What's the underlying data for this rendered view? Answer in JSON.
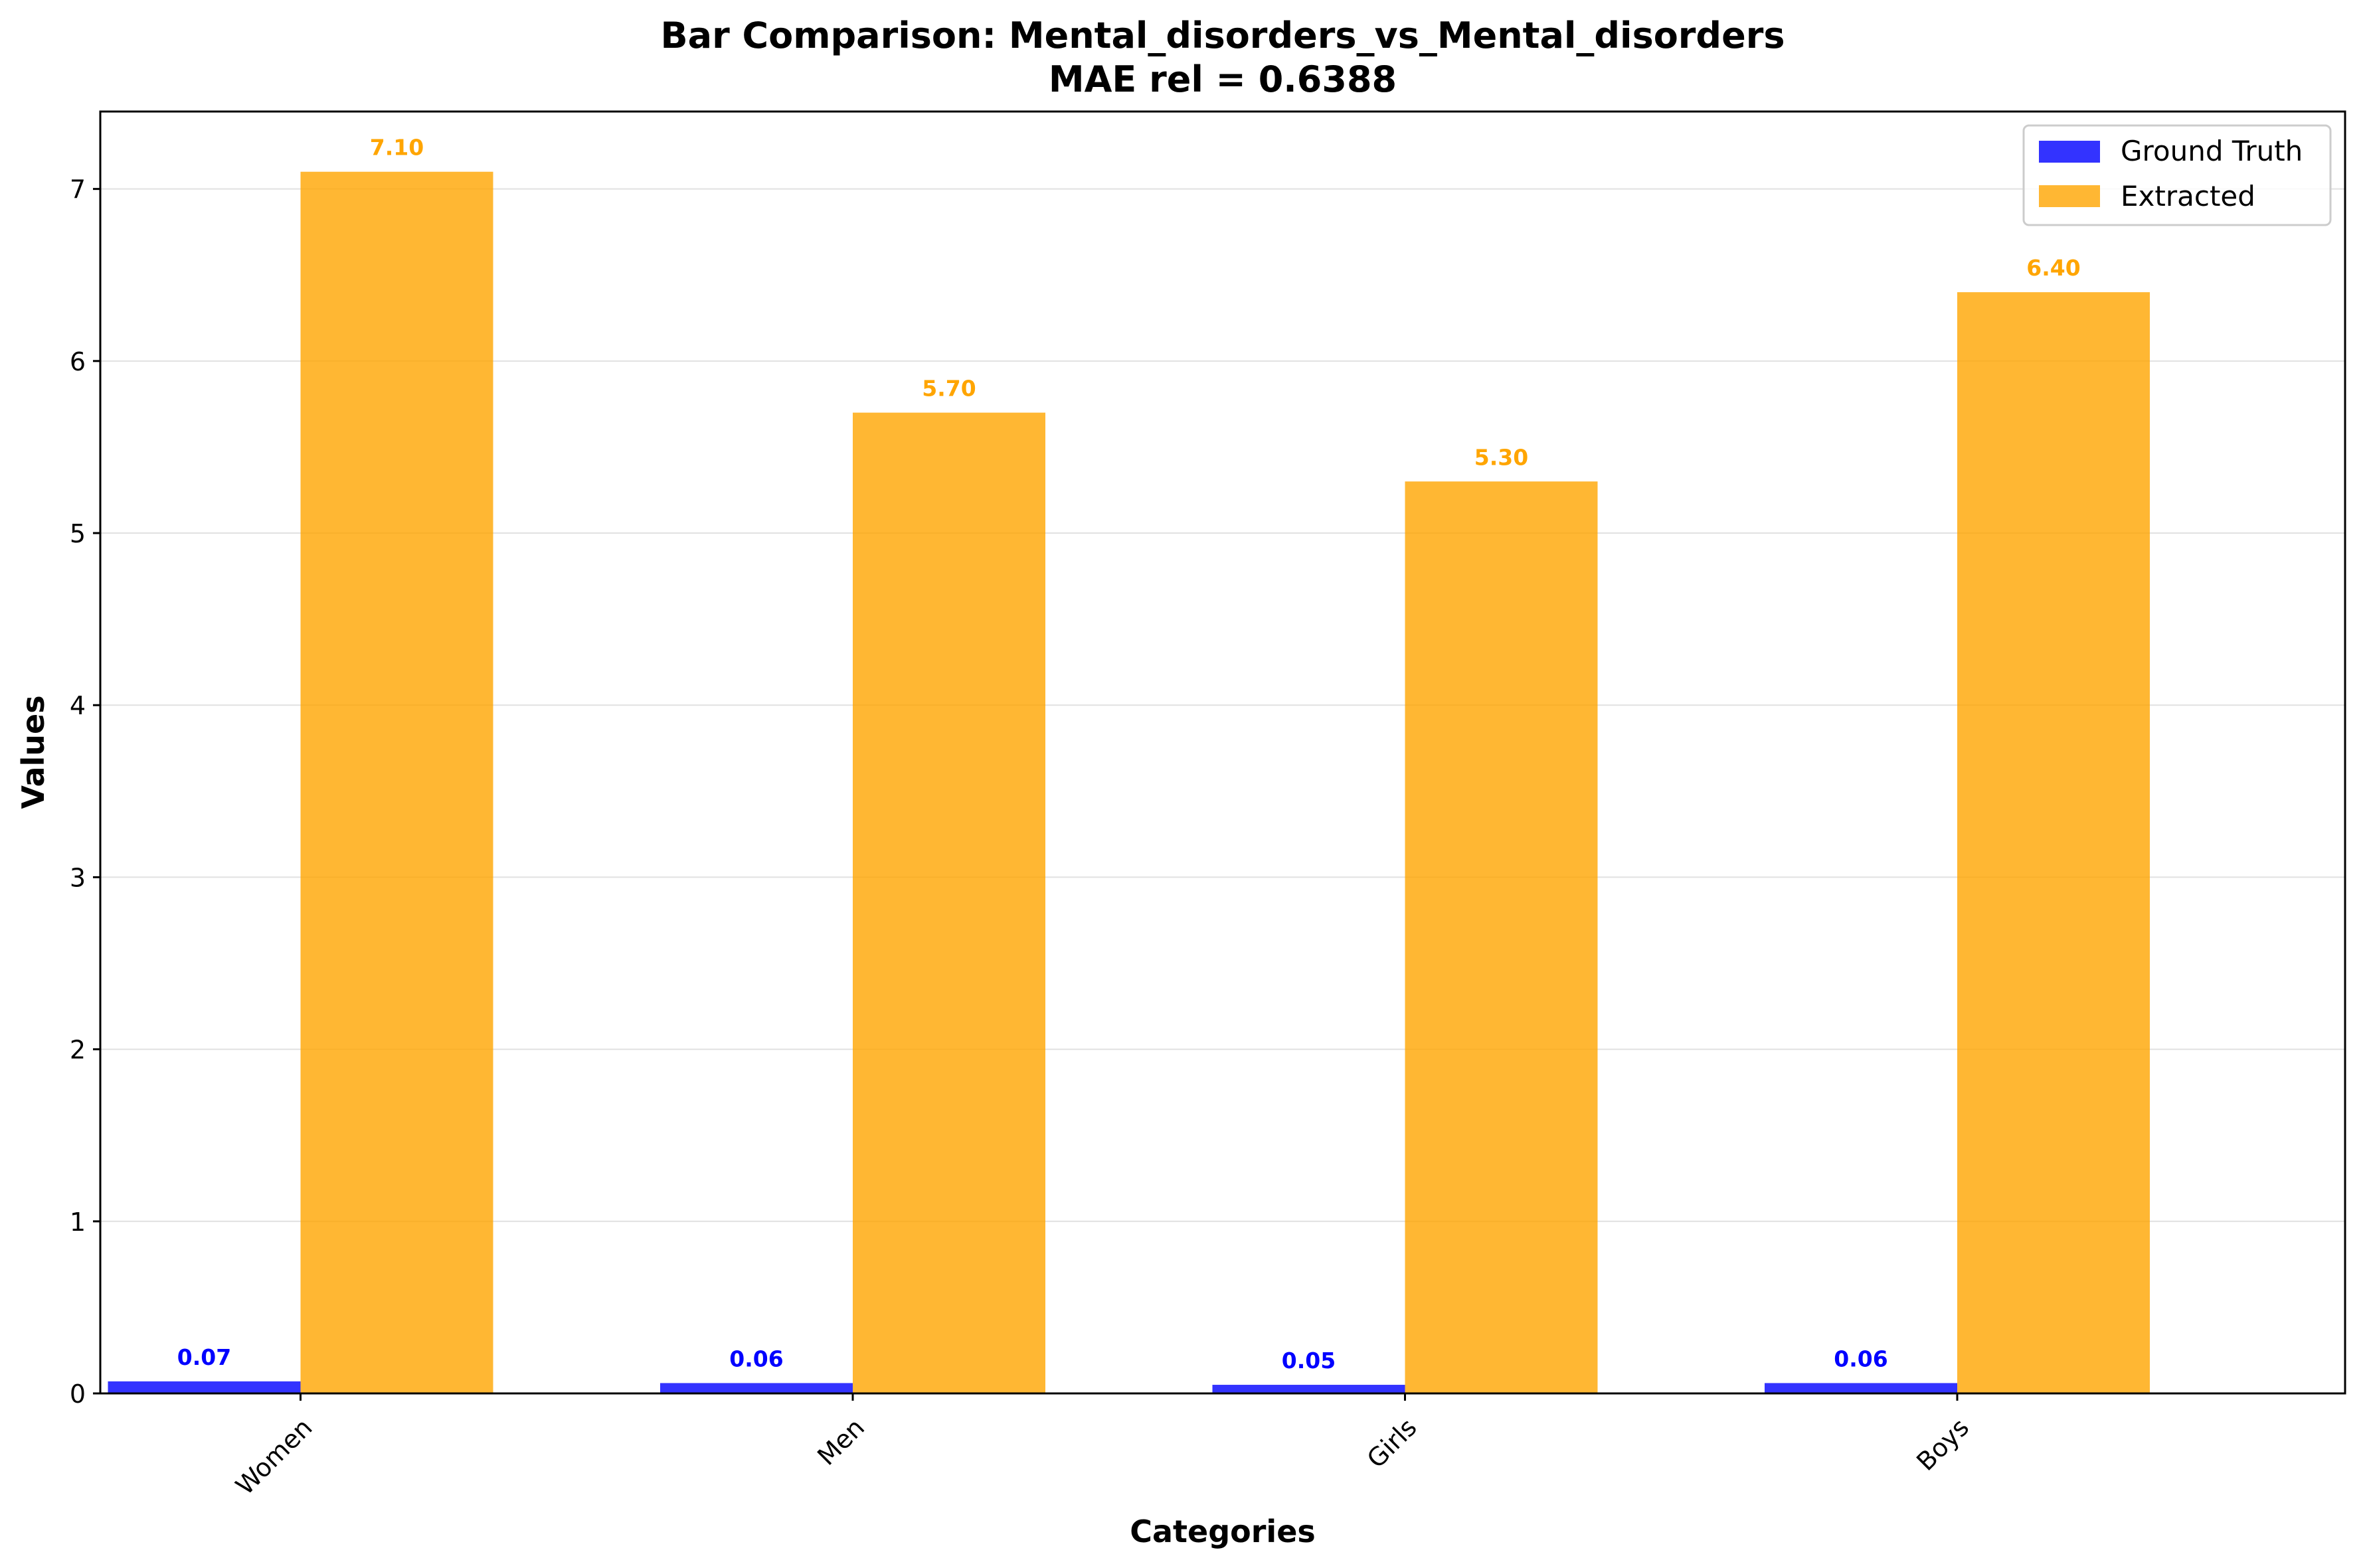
{
  "chart_data": {
    "type": "bar",
    "title": "Bar Comparison: Mental_disorders_vs_Mental_disorders",
    "subtitle": "MAE rel = 0.6388",
    "xlabel": "Categories",
    "ylabel": "Values",
    "categories": [
      "Women",
      "Men",
      "Girls",
      "Boys"
    ],
    "series": [
      {
        "name": "Ground Truth",
        "color": "#0000ff",
        "label_color": "#0000ff",
        "values": [
          0.07,
          0.06,
          0.05,
          0.06
        ],
        "labels": [
          "0.07",
          "0.06",
          "0.05",
          "0.06"
        ]
      },
      {
        "name": "Extracted",
        "color": "#ffa500",
        "label_color": "#ffa500",
        "values": [
          7.1,
          5.7,
          5.3,
          6.4
        ],
        "labels": [
          "7.10",
          "5.70",
          "5.30",
          "6.40"
        ]
      }
    ],
    "ylim": [
      0,
      7.45
    ],
    "yticks": [
      0,
      1,
      2,
      3,
      4,
      5,
      6,
      7
    ],
    "grid": true,
    "legend_position": "top-right"
  }
}
